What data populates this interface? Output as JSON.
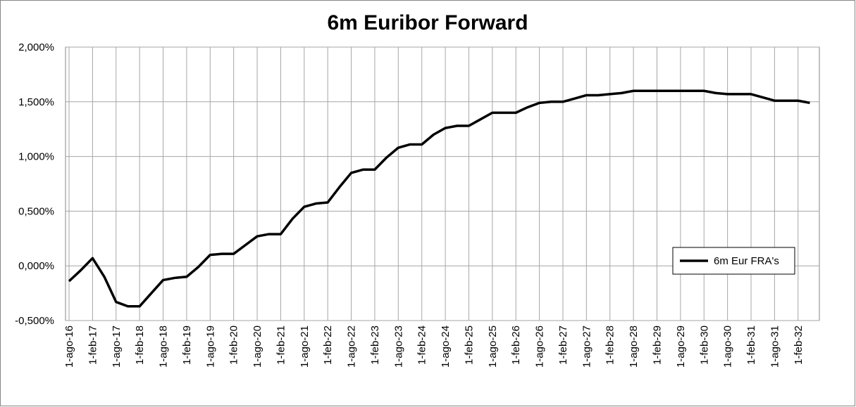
{
  "chart_data": {
    "type": "line",
    "title": "6m Euribor Forward",
    "categories": [
      "1-ago-16",
      null,
      "1-feb-17",
      null,
      "1-ago-17",
      null,
      "1-feb-18",
      null,
      "1-ago-18",
      null,
      "1-feb-19",
      null,
      "1-ago-19",
      null,
      "1-feb-20",
      null,
      "1-ago-20",
      null,
      "1-feb-21",
      null,
      "1-ago-21",
      null,
      "1-feb-22",
      null,
      "1-ago-22",
      null,
      "1-feb-23",
      null,
      "1-ago-23",
      null,
      "1-feb-24",
      null,
      "1-ago-24",
      null,
      "1-feb-25",
      null,
      "1-ago-25",
      null,
      "1-feb-26",
      null,
      "1-ago-26",
      null,
      "1-feb-27",
      null,
      "1-ago-27",
      null,
      "1-feb-28",
      null,
      "1-ago-28",
      null,
      "1-feb-29",
      null,
      "1-ago-29",
      null,
      "1-feb-30",
      null,
      "1-ago-30",
      null,
      "1-feb-31",
      null,
      "1-ago-31",
      null,
      "1-feb-32",
      null
    ],
    "series": [
      {
        "name": "6m Eur FRA's",
        "color": "#000000",
        "values": [
          -0.14,
          -0.04,
          0.07,
          -0.1,
          -0.33,
          -0.37,
          -0.37,
          -0.25,
          -0.13,
          -0.11,
          -0.1,
          -0.01,
          0.1,
          0.11,
          0.11,
          0.19,
          0.27,
          0.29,
          0.29,
          0.43,
          0.54,
          0.57,
          0.58,
          0.72,
          0.85,
          0.88,
          0.88,
          0.99,
          1.08,
          1.11,
          1.11,
          1.2,
          1.26,
          1.28,
          1.28,
          1.34,
          1.4,
          1.4,
          1.4,
          1.45,
          1.49,
          1.5,
          1.5,
          1.53,
          1.56,
          1.56,
          1.57,
          1.58,
          1.6,
          1.6,
          1.6,
          1.6,
          1.6,
          1.6,
          1.6,
          1.58,
          1.57,
          1.57,
          1.57,
          1.54,
          1.51,
          1.51,
          1.51,
          1.49
        ]
      }
    ],
    "ylim": [
      -0.5,
      2.0
    ],
    "yticks": [
      {
        "value": -0.5,
        "label": "-0,500%"
      },
      {
        "value": 0,
        "label": "0,000%"
      },
      {
        "value": 0.5,
        "label": "0,500%"
      },
      {
        "value": 1.0,
        "label": "1,000%"
      },
      {
        "value": 1.5,
        "label": "1,500%"
      },
      {
        "value": 2.0,
        "label": "2,000%"
      }
    ],
    "grid": true,
    "legend": "right"
  }
}
